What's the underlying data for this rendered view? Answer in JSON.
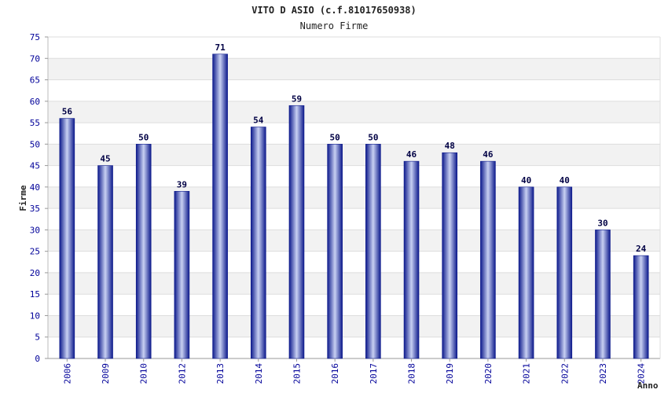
{
  "chart_data": {
    "type": "bar",
    "title": "VITO D ASIO (c.f.81017650938)",
    "subtitle": "Numero Firme",
    "xlabel": "Anno",
    "ylabel": "Firme",
    "categories": [
      "2006",
      "2009",
      "2010",
      "2012",
      "2013",
      "2014",
      "2015",
      "2016",
      "2017",
      "2018",
      "2019",
      "2020",
      "2021",
      "2022",
      "2023",
      "2024"
    ],
    "values": [
      56,
      45,
      50,
      39,
      71,
      54,
      59,
      50,
      50,
      46,
      48,
      46,
      40,
      40,
      30,
      24
    ],
    "ylim": [
      0,
      75
    ],
    "yticks": [
      0,
      5,
      10,
      15,
      20,
      25,
      30,
      35,
      40,
      45,
      50,
      55,
      60,
      65,
      70,
      75
    ],
    "grid": true,
    "colors": {
      "bar_dark": "#0d1a8c",
      "bar_light": "#c8d0f2",
      "tick_text": "#000099",
      "band": "#f2f2f2",
      "gridline": "#dddddd"
    }
  }
}
